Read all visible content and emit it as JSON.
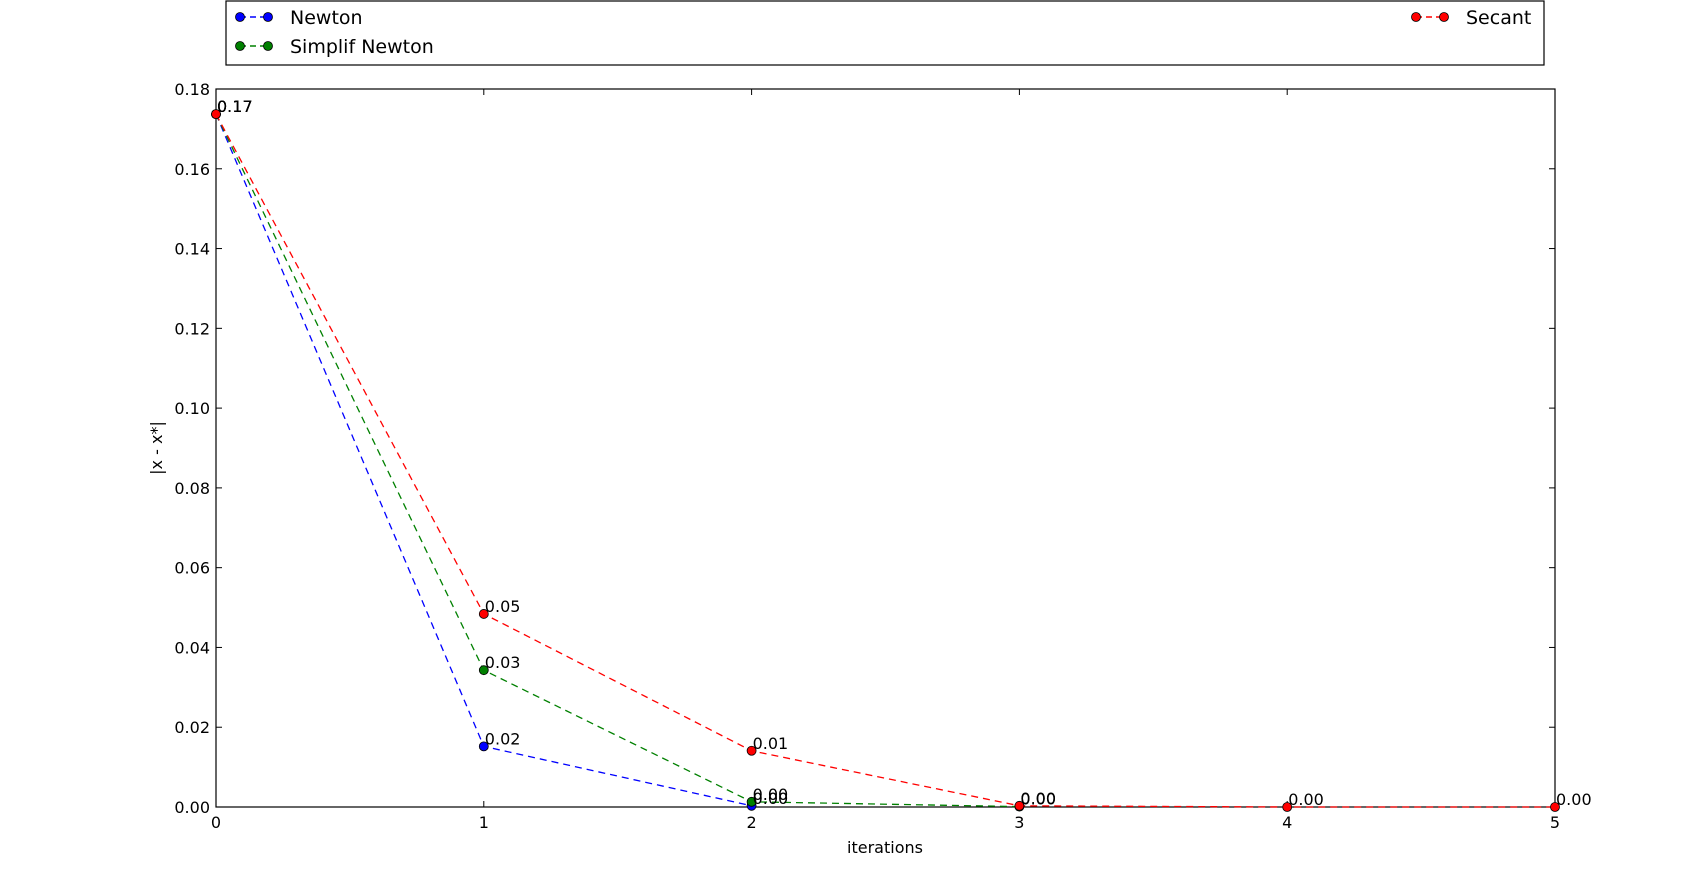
{
  "chart_data": {
    "type": "line",
    "title": "",
    "xlabel": "iterations",
    "ylabel": "|x - x*|",
    "xlim": [
      0,
      5
    ],
    "ylim": [
      0,
      0.18
    ],
    "x_ticks": [
      "0",
      "1",
      "2",
      "3",
      "4",
      "5"
    ],
    "y_ticks": [
      "0.00",
      "0.02",
      "0.04",
      "0.06",
      "0.08",
      "0.10",
      "0.12",
      "0.14",
      "0.16",
      "0.18"
    ],
    "grid": false,
    "legend_placement": "top, above plot",
    "series": [
      {
        "name": "Newton",
        "color": "#0000ff",
        "x": [
          0,
          1,
          2
        ],
        "values": [
          0.1737,
          0.0152,
          0.0003
        ],
        "labels": [
          "0.17",
          "0.02",
          "0.00"
        ]
      },
      {
        "name": "Simplif Newton",
        "color": "#008000",
        "x": [
          0,
          1,
          2,
          3
        ],
        "values": [
          0.1737,
          0.0343,
          0.0013,
          0.0001
        ],
        "labels": [
          "0.17",
          "0.03",
          "0.00",
          "0.00"
        ]
      },
      {
        "name": "Secant",
        "color": "#ff0000",
        "x": [
          0,
          1,
          2,
          3,
          4,
          5
        ],
        "values": [
          0.1737,
          0.0484,
          0.0141,
          0.0003,
          0.0,
          0.0
        ],
        "labels": [
          "0.17",
          "0.05",
          "0.01",
          "0.00",
          "0.00",
          "0.00"
        ]
      }
    ]
  }
}
